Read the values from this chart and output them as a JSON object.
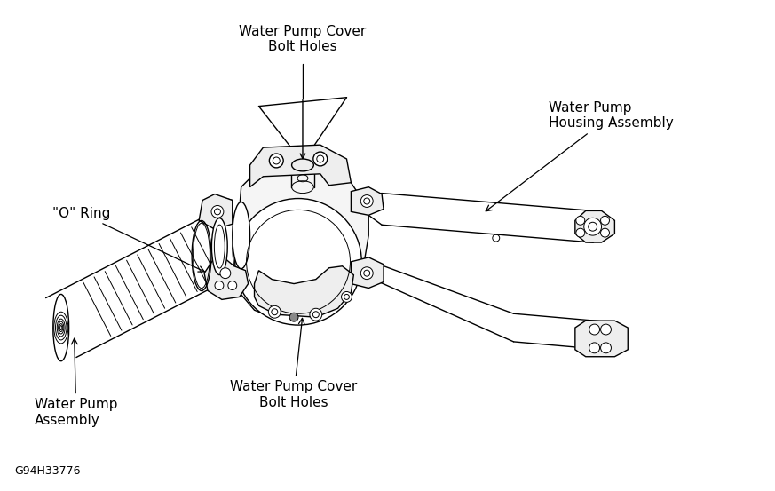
{
  "background_color": "#ffffff",
  "line_color": "#000000",
  "text_color": "#000000",
  "figure_width": 8.73,
  "figure_height": 5.53,
  "dpi": 100,
  "code_label": "G94H33776",
  "labels": {
    "bolt_holes_top": "Water Pump Cover\nBolt Holes",
    "housing_assembly": "Water Pump\nHousing Assembly",
    "o_ring": "\"O\" Ring",
    "bolt_holes_bot": "Water Pump Cover\nBolt Holes",
    "pump_assembly": "Water Pump\nAssembly"
  }
}
